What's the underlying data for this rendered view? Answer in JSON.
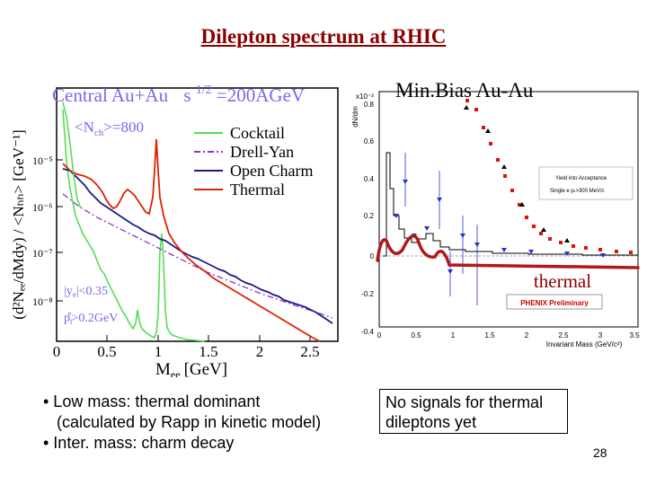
{
  "slide": {
    "title": "Dilepton spectrum at RHIC",
    "page_number": "28"
  },
  "left_plot": {
    "title_left": "Central Au+Au",
    "title_sqrt_s": "s",
    "title_exp": "1/2",
    "title_right": "=200AGeV",
    "nch_label": "<N",
    "nch_sub": "ch",
    "nch_value": ">=800",
    "legend": [
      "Cocktail",
      "Drell-Yan",
      "Open Charm",
      "Thermal"
    ],
    "cut1_pre": "|y",
    "cut1_sub": "e",
    "cut1_post": "|<0.35",
    "cut2_pre": "p",
    "cut2_sub": "t",
    "cut2_sup": "e",
    "cut2_post": ">0.2GeV",
    "ylabel": "(d²Nₑₑ/dMdy) / <Nₕₕ> [GeV⁻¹]",
    "xlabel": "M",
    "xlabel_sub": "ee",
    "xlabel_unit": "[GeV]",
    "xticks": [
      "0",
      "0.5",
      "1",
      "1.5",
      "2",
      "2.5"
    ],
    "yticks": [
      "10⁻⁵",
      "10⁻⁶",
      "10⁻⁷",
      "10⁻⁸"
    ],
    "colors": {
      "cocktail": "#55dd55",
      "drell_yan": "#9933cc",
      "open_charm": "#1a1a8a",
      "thermal": "#dd2200",
      "title": "#7b68ee"
    }
  },
  "right_plot": {
    "label": "Min.Bias Au-Au",
    "y_axis_label": "dN/dm",
    "y_scale": "x10⁻³",
    "yticks": [
      "0.8",
      "0.6",
      "0.4",
      "0.2",
      "0",
      "-0.2",
      "-0.4"
    ],
    "xticks": [
      "0",
      "0.5",
      "1",
      "1.5",
      "2",
      "2.5",
      "3",
      "3.5"
    ],
    "xlabel": "Invariant Mass (GeV/c²)",
    "box_line1": "Yield into Acceptance",
    "box_line2": "Single e pₜ>300 MeV/c",
    "preliminary": "PHENIX Preliminary",
    "thermal_label": "thermal"
  },
  "notes": {
    "bullets": [
      "• Low mass: thermal dominant",
      "   (calculated by Rapp in kinetic model)",
      "• Inter. mass: charm decay"
    ],
    "no_signal": "No signals for thermal dileptons yet"
  }
}
